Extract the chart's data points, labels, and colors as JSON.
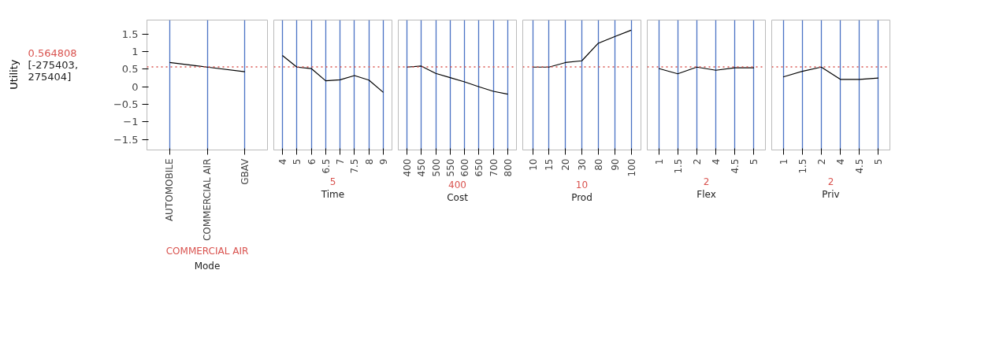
{
  "chart_data": [
    {
      "type": "line",
      "xlabel": "Mode",
      "ylabel": "Utility",
      "categories": [
        "AUTOMOBILE",
        "COMMERCIAL AIR",
        "GBAV"
      ],
      "series": [
        {
          "color": "#000000",
          "values": [
            0.69,
            0.56,
            0.43
          ]
        }
      ],
      "ylim": [
        -1.8,
        1.9
      ],
      "yticks": [
        -1.5,
        -1,
        -0.5,
        0,
        0.5,
        1,
        1.5
      ],
      "grid": "x",
      "ref_lines": [
        {
          "axis": "y",
          "value": 0.564808,
          "label": "0.564808",
          "color": "#d9534f",
          "line_style": "dotted"
        }
      ],
      "annotations": [
        "[-275403, 275404]",
        "COMMERCIAL AIR"
      ]
    },
    {
      "type": "line",
      "xlabel": "Time",
      "categories": [
        "4",
        "5",
        "6",
        "6.5",
        "7",
        "7.5",
        "8",
        "9"
      ],
      "series": [
        {
          "color": "#000000",
          "values": [
            0.89,
            0.56,
            0.52,
            0.17,
            0.2,
            0.32,
            0.19,
            -0.16
          ]
        }
      ],
      "ylim": [
        -1.8,
        1.9
      ],
      "tick_labels": "x",
      "grid": "x",
      "ref_lines": [
        {
          "axis": "y",
          "value": 0.564808,
          "color": "#d9534f",
          "line_style": "dotted"
        }
      ],
      "annotations": [
        "5"
      ]
    },
    {
      "type": "line",
      "xlabel": "Cost",
      "categories": [
        "400",
        "450",
        "500",
        "550",
        "600",
        "650",
        "700",
        "800"
      ],
      "series": [
        {
          "color": "#000000",
          "values": [
            0.56,
            0.59,
            0.38,
            0.26,
            0.14,
            0.0,
            -0.13,
            -0.21
          ]
        }
      ],
      "ylim": [
        -1.8,
        1.9
      ],
      "tick_labels": "x",
      "grid": "x",
      "ref_lines": [
        {
          "axis": "y",
          "value": 0.564808,
          "color": "#d9534f",
          "line_style": "dotted"
        }
      ],
      "annotations": [
        "400"
      ]
    },
    {
      "type": "line",
      "xlabel": "Prod",
      "categories": [
        "10",
        "15",
        "20",
        "30",
        "80",
        "90",
        "100"
      ],
      "series": [
        {
          "color": "#000000",
          "values": [
            0.56,
            0.56,
            0.69,
            0.74,
            1.24,
            1.43,
            1.61
          ]
        }
      ],
      "ylim": [
        -1.8,
        1.9
      ],
      "tick_labels": "x",
      "grid": "x",
      "ref_lines": [
        {
          "axis": "y",
          "value": 0.564808,
          "color": "#d9534f",
          "line_style": "dotted"
        }
      ],
      "annotations": [
        "10"
      ]
    },
    {
      "type": "line",
      "xlabel": "Flex",
      "categories": [
        "1",
        "1.5",
        "2",
        "4",
        "4.5",
        "5"
      ],
      "series": [
        {
          "color": "#000000",
          "values": [
            0.52,
            0.37,
            0.56,
            0.47,
            0.54,
            0.54
          ]
        }
      ],
      "ylim": [
        -1.8,
        1.9
      ],
      "tick_labels": "x",
      "grid": "x",
      "ref_lines": [
        {
          "axis": "y",
          "value": 0.564808,
          "color": "#d9534f",
          "line_style": "dotted"
        }
      ],
      "annotations": [
        "2"
      ]
    },
    {
      "type": "line",
      "xlabel": "Priv",
      "categories": [
        "1",
        "1.5",
        "2",
        "4",
        "4.5",
        "5"
      ],
      "series": [
        {
          "color": "#000000",
          "values": [
            0.28,
            0.44,
            0.56,
            0.21,
            0.21,
            0.25
          ]
        }
      ],
      "ylim": [
        -1.8,
        1.9
      ],
      "tick_labels": "x",
      "grid": "x",
      "ref_lines": [
        {
          "axis": "y",
          "value": 0.564808,
          "color": "#d9534f",
          "line_style": "dotted"
        }
      ],
      "annotations": [
        "2"
      ]
    }
  ]
}
